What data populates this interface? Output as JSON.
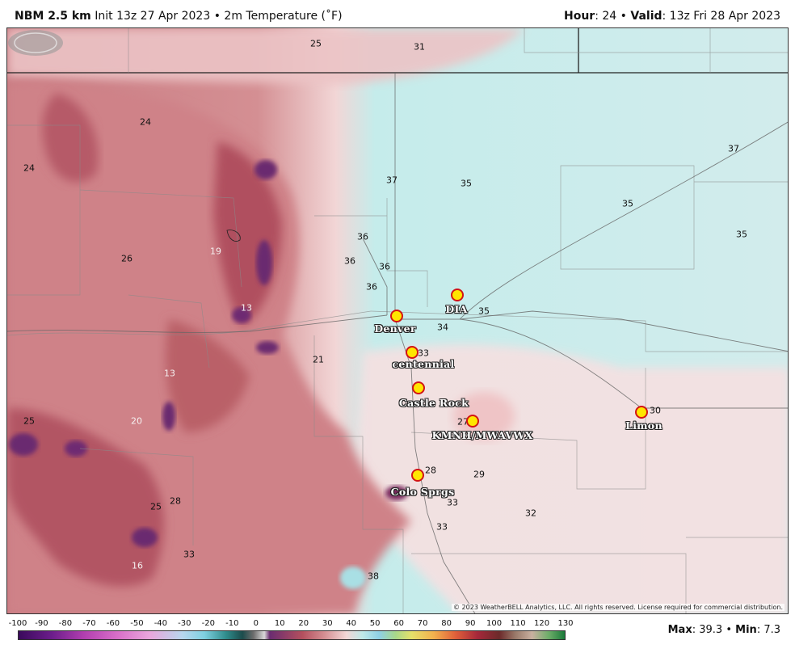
{
  "header": {
    "model": "NBM 2.5 km",
    "init": "Init 13z 27 Apr 2023",
    "separator": "•",
    "field": "2m Temperature (˚F)",
    "hour_label": "Hour",
    "hour_value": ": 24",
    "valid_label": "Valid",
    "valid_value": ": 13z Fri 28 Apr 2023"
  },
  "map": {
    "temperature_labels": [
      {
        "text": "25",
        "light": false
      },
      {
        "text": "31",
        "light": false
      },
      {
        "text": "24",
        "light": false
      },
      {
        "text": "24",
        "light": false
      },
      {
        "text": "37",
        "light": false
      },
      {
        "text": "35",
        "light": false
      },
      {
        "text": "37",
        "light": false
      },
      {
        "text": "35",
        "light": false
      },
      {
        "text": "35",
        "light": false
      },
      {
        "text": "26",
        "light": false
      },
      {
        "text": "19",
        "light": true
      },
      {
        "text": "36",
        "light": false
      },
      {
        "text": "36",
        "light": false
      },
      {
        "text": "36",
        "light": false
      },
      {
        "text": "36",
        "light": false
      },
      {
        "text": "13",
        "light": true
      },
      {
        "text": "35",
        "light": false
      },
      {
        "text": "34",
        "light": false
      },
      {
        "text": "21",
        "light": false
      },
      {
        "text": "13",
        "light": true
      },
      {
        "text": "33",
        "light": false
      },
      {
        "text": "25",
        "light": false
      },
      {
        "text": "20",
        "light": true
      },
      {
        "text": "30",
        "light": false
      },
      {
        "text": "27",
        "light": false
      },
      {
        "text": "28",
        "light": false
      },
      {
        "text": "29",
        "light": false
      },
      {
        "text": "28",
        "light": false
      },
      {
        "text": "25",
        "light": false
      },
      {
        "text": "33",
        "light": false
      },
      {
        "text": "32",
        "light": false
      },
      {
        "text": "33",
        "light": false
      },
      {
        "text": "16",
        "light": true
      },
      {
        "text": "33",
        "light": false
      },
      {
        "text": "38",
        "light": false
      }
    ],
    "cities": [
      {
        "name": "DIA"
      },
      {
        "name": "Denver"
      },
      {
        "name": "centennial"
      },
      {
        "name": "Castle Rock"
      },
      {
        "name": "KMNH/MWAVWX"
      },
      {
        "name": "Limon"
      },
      {
        "name": "Colo Sprgs"
      }
    ],
    "copyright": "© 2023 WeatherBELL Analytics, LLC. All rights reserved. License required for commercial distribution.",
    "logo_text": "WeatherBELL",
    "colors": {
      "cold": "#bfe9e8",
      "mild": "#f3dcdc",
      "warm": "#d99a9c",
      "deep": "#b4505e",
      "purple": "#5a2a6e"
    }
  },
  "legend": {
    "ticks": [
      "-100",
      "-90",
      "-80",
      "-70",
      "-60",
      "-50",
      "-40",
      "-30",
      "-20",
      "-10",
      "0",
      "10",
      "20",
      "30",
      "40",
      "50",
      "60",
      "70",
      "80",
      "90",
      "100",
      "110",
      "120",
      "130"
    ],
    "max_label": "Max",
    "max_value": ": 39.3",
    "min_label": "Min",
    "min_value": ": 7.3",
    "separator": "•"
  }
}
